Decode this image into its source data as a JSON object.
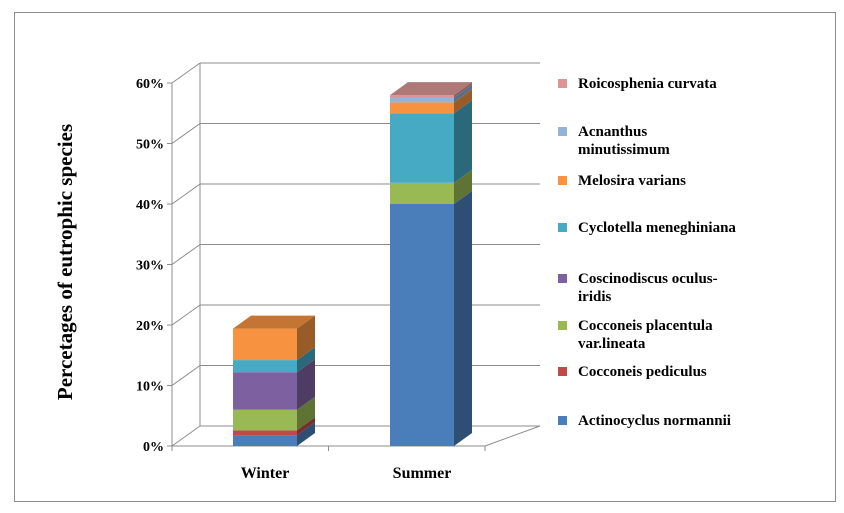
{
  "chart_data": {
    "type": "bar",
    "stacked": true,
    "three_d": true,
    "ylabel": "Percetages of eutrophic species",
    "ylim": [
      0,
      60
    ],
    "yticks": [
      "0%",
      "10%",
      "20%",
      "30%",
      "40%",
      "50%",
      "60%"
    ],
    "ytick_values": [
      0,
      10,
      20,
      30,
      40,
      50,
      60
    ],
    "categories": [
      "Winter",
      "Summer"
    ],
    "grid": true,
    "legend_position": "right",
    "series": [
      {
        "name": "Actinocyclus normannii",
        "color": "#4a7ebb",
        "values": [
          1.8,
          40
        ]
      },
      {
        "name": "Cocconeis pediculus",
        "color": "#be4b48",
        "values": [
          0.8,
          0
        ]
      },
      {
        "name": "Cocconeis placentula var.lineata",
        "color": "#98b954",
        "values": [
          3.4,
          3.5
        ]
      },
      {
        "name": "Coscinodiscus oculus-iridis",
        "color": "#7d60a0",
        "values": [
          6.2,
          0
        ]
      },
      {
        "name": "Cyclotella meneghiniana",
        "color": "#46aac5",
        "values": [
          2,
          11.5
        ]
      },
      {
        "name": "Melosira varians",
        "color": "#f69240",
        "values": [
          5.2,
          1.8
        ]
      },
      {
        "name": "Acnanthus minutissimum",
        "color": "#95b3d7",
        "values": [
          0,
          0.8
        ]
      },
      {
        "name": "Roicosphenia curvata",
        "color": "#d99694",
        "values": [
          0,
          0.4
        ]
      }
    ]
  },
  "legend_lines": [
    [
      "Roicosphenia curvata"
    ],
    [
      "Acnanthus",
      "minutissimum"
    ],
    [
      "Melosira varians"
    ],
    [
      "Cyclotella meneghiniana"
    ],
    [
      "Coscinodiscus oculus-",
      "iridis"
    ],
    [
      "Cocconeis placentula",
      "var.lineata"
    ],
    [
      "Cocconeis pediculus"
    ],
    [
      "Actinocyclus normannii"
    ]
  ]
}
